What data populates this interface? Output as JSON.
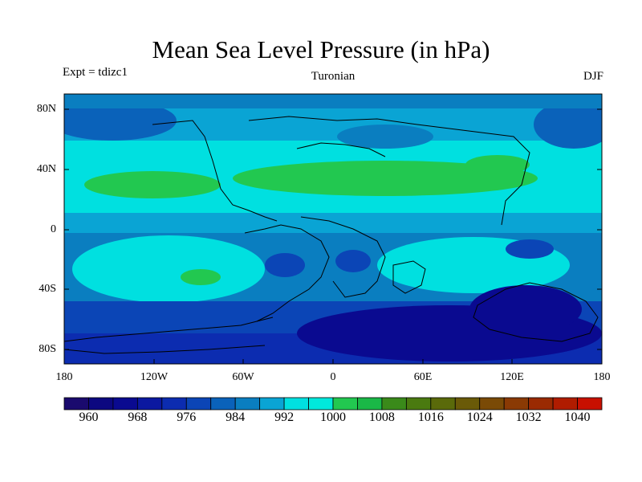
{
  "title": "Mean Sea Level Pressure (in hPa)",
  "subtitle_left": "Expt = tdizc1",
  "subtitle_center": "Turonian",
  "subtitle_right": "DJF",
  "y_ticks": [
    "80N",
    "40N",
    "0",
    "40S",
    "80S"
  ],
  "x_ticks": [
    "180",
    "120W",
    "60W",
    "0",
    "60E",
    "120E",
    "180"
  ],
  "colorbar": {
    "labels": [
      "960",
      "968",
      "976",
      "984",
      "992",
      "1000",
      "1008",
      "1016",
      "1024",
      "1032",
      "1040"
    ],
    "colors": [
      "#1a0a6e",
      "#0c0880",
      "#0a0a90",
      "#0b18a0",
      "#0c2cb0",
      "#0b45b6",
      "#0a62ba",
      "#0a7ec0",
      "#0aa4d4",
      "#00e0e0",
      "#00e8dc",
      "#22c850",
      "#1ab847",
      "#3a8a1a",
      "#4a7a10",
      "#5a6a0a",
      "#6a5a08",
      "#7a4a06",
      "#8a3a04",
      "#9a2a02",
      "#b01c00",
      "#c81000"
    ]
  },
  "palette": {
    "deep_blue": "#0a0a90",
    "dark_blue": "#0c2cb0",
    "mid_blue": "#0b45b6",
    "blue": "#0a62ba",
    "light_blue": "#0a7ec0",
    "sky": "#0aa4d4",
    "cyan": "#00e0e0",
    "green": "#22c850",
    "coast": "#000000"
  }
}
